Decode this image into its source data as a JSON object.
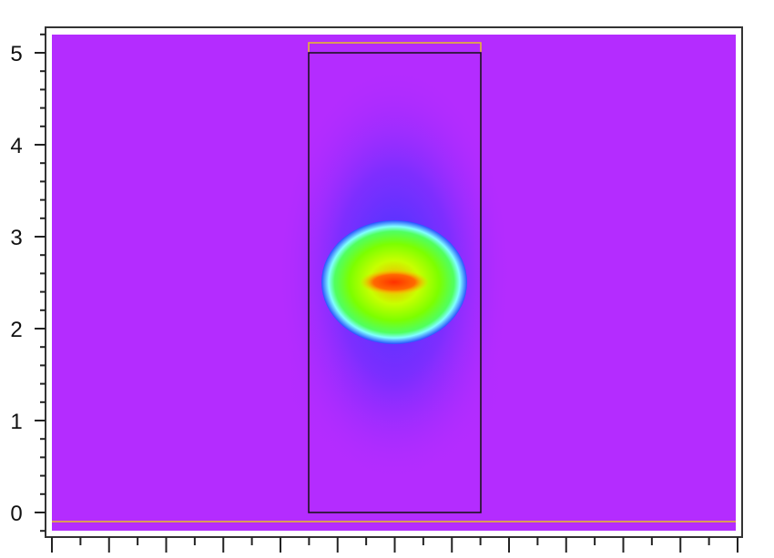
{
  "chart_data": {
    "type": "heatmap",
    "title": "",
    "xlabel": "",
    "ylabel": "",
    "ylim": [
      -0.2,
      5.2
    ],
    "yticks": [
      0,
      1,
      2,
      3,
      4,
      5
    ],
    "ytick_labels": [
      "0",
      "1",
      "2",
      "3",
      "4",
      "5"
    ],
    "ytick_minor_step": 0.2,
    "xtick_labels_shown": false,
    "grid": false,
    "colormap": [
      "#b42cff",
      "#2a3cff",
      "#7fffff",
      "#7cff00",
      "#ffff00",
      "#ff3300"
    ],
    "background_color": "#b42cff",
    "hotspot_center_y": 2.5,
    "structure_rectangle": {
      "y_from": 0,
      "y_to": 5,
      "edge_color": "#000000"
    },
    "boundary_lines_color": "#e8c020"
  }
}
